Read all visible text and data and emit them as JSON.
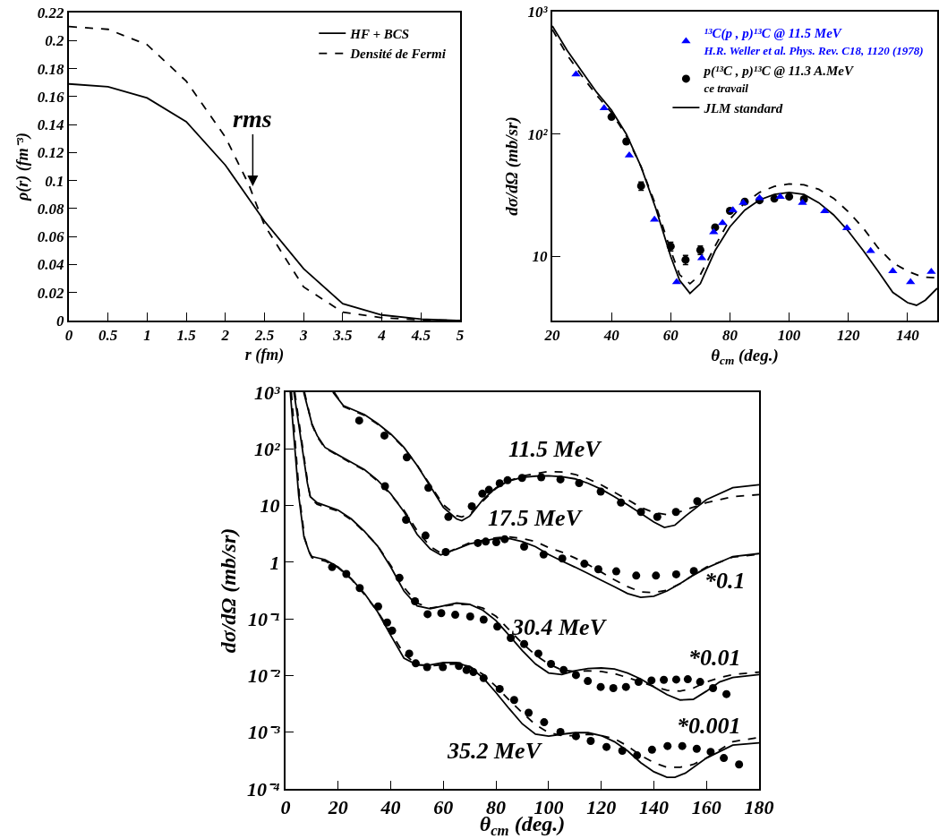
{
  "chart_data": [
    {
      "type": "line",
      "xlabel": "r (fm)",
      "ylabel": "ρ(r) (fm⁻³)",
      "xlim": [
        0,
        5
      ],
      "ylim": [
        0,
        0.22
      ],
      "xticks": [
        0,
        0.5,
        1,
        1.5,
        2,
        2.5,
        3,
        3.5,
        4,
        4.5,
        5
      ],
      "yticks": [
        0,
        0.02,
        0.04,
        0.06,
        0.08,
        0.1,
        0.12,
        0.14,
        0.16,
        0.18,
        0.2,
        0.22
      ],
      "legend": "top right",
      "annotations": [
        {
          "text": "rms",
          "x": 2.35,
          "y": 0.096
        }
      ],
      "series": [
        {
          "name": "HF + BCS",
          "color": "#000000",
          "line_style": "solid",
          "x": [
            0,
            0.5,
            1,
            1.5,
            2,
            2.5,
            3,
            3.5,
            4,
            4.5,
            5
          ],
          "values": [
            0.169,
            0.167,
            0.159,
            0.142,
            0.111,
            0.071,
            0.037,
            0.012,
            0.004,
            0.001,
            0
          ]
        },
        {
          "name": "Densité de Fermi",
          "color": "#000000",
          "line_style": "dashed",
          "x": [
            0,
            0.5,
            1,
            1.5,
            2,
            2.3,
            2.5,
            3,
            3.5,
            4,
            4.5,
            5
          ],
          "values": [
            0.21,
            0.208,
            0.197,
            0.171,
            0.131,
            0.097,
            0.068,
            0.024,
            0.006,
            0.002,
            0.0005,
            0
          ]
        }
      ]
    },
    {
      "type": "line",
      "xlabel": "θ$_{cm}$ (deg.)",
      "ylabel": "dσ/dΩ (mb/sr)",
      "log": "y",
      "xlim": [
        20,
        150
      ],
      "ylim": [
        3,
        1000
      ],
      "xticks": [
        20,
        40,
        60,
        80,
        100,
        120,
        140
      ],
      "yticks": [
        10,
        {
          "value": 100,
          "label": "10²"
        },
        {
          "value": 1000,
          "label": "10³"
        }
      ],
      "legend": "top right",
      "series": [
        {
          "type": "scatter",
          "name": "¹³C(p , p)¹³C @ 11.5 MeV\nH.R. Weller et al. Phys. Rev. C18, 1120 (1978)",
          "color": "#0000ff",
          "marker": "triangle",
          "x": [
            28,
            37.5,
            46,
            54.5,
            62,
            70.5,
            74.5,
            77.5,
            81,
            84.5,
            90,
            97,
            104.5,
            112,
            119.5,
            127.5,
            135,
            141,
            148
          ],
          "values": [
            308,
            163,
            67,
            20,
            6.2,
            9.7,
            15.8,
            18.8,
            23.9,
            27.5,
            30,
            30.8,
            27.5,
            23.5,
            17.1,
            11.1,
            7.6,
            6.2,
            7.5
          ]
        },
        {
          "type": "scatter",
          "name": "p(¹³C , p)¹³C @ 11.3 A.MeV\nce travail",
          "color": "#000000",
          "marker": "circle",
          "x": [
            40,
            45,
            50,
            60,
            65,
            70,
            75,
            80,
            85,
            90,
            95,
            100,
            105
          ],
          "values": [
            138,
            87,
            37.7,
            12.1,
            9.4,
            11.3,
            17.3,
            23.6,
            28.1,
            28.8,
            29.7,
            30.8,
            29.4
          ],
          "errors": [
            null,
            null,
            3,
            1,
            0.8,
            0.9,
            null,
            null,
            null,
            null,
            null,
            null,
            null
          ]
        },
        {
          "type": "line",
          "name": "JLM standard",
          "color": "#000000",
          "line_style": "solid",
          "x": [
            20,
            25,
            30,
            35,
            40,
            45,
            50,
            55,
            60,
            63,
            66.5,
            70,
            75,
            80,
            85,
            90,
            95,
            100,
            105,
            110,
            115,
            120,
            125,
            130,
            135,
            140,
            143,
            146,
            150
          ],
          "values": [
            764,
            482,
            325,
            219,
            157,
            100,
            54,
            24.5,
            10,
            6.4,
            5.0,
            6.0,
            11.2,
            17.5,
            23.9,
            29,
            32.1,
            33.4,
            32.1,
            27.5,
            21.9,
            16.1,
            11.2,
            7.6,
            5.1,
            4.2,
            4.0,
            4.4,
            5.5
          ]
        },
        {
          "type": "line",
          "color": "#000000",
          "line_style": "dashed",
          "x": [
            20,
            25,
            30,
            35,
            40,
            45,
            50,
            55,
            60,
            63,
            66.5,
            70,
            75,
            80,
            85,
            90,
            95,
            100,
            105,
            110,
            115,
            120,
            125,
            130,
            135,
            140,
            145,
            150
          ],
          "values": [
            714,
            443,
            299,
            207,
            150,
            97,
            54,
            26,
            11.2,
            7.1,
            6.0,
            7.1,
            12.2,
            20.2,
            27.5,
            33.4,
            37.4,
            39.2,
            38.5,
            35.4,
            29.9,
            23.2,
            17.1,
            11.8,
            8.9,
            7.6,
            6.8,
            6.7
          ]
        }
      ]
    },
    {
      "type": "line",
      "xlabel": "θ$_{cm}$ (deg.)",
      "ylabel": "dσ/dΩ (mb/sr)",
      "log": "y",
      "xlim": [
        0,
        180
      ],
      "ylim": [
        0.0001,
        1000
      ],
      "xticks": [
        0,
        20,
        40,
        60,
        80,
        100,
        120,
        140,
        160,
        180
      ],
      "yticks": [
        {
          "value": 0.0001,
          "label": "10⁻⁴"
        },
        {
          "value": 0.001,
          "label": "10⁻³"
        },
        {
          "value": 0.01,
          "label": "10⁻²"
        },
        {
          "value": 0.1,
          "label": "10⁻¹"
        },
        1,
        10,
        {
          "value": 100,
          "label": "10²"
        },
        {
          "value": 1000,
          "label": "10³"
        }
      ],
      "annotations": [
        "11.5 MeV",
        "17.5 MeV",
        "30.4 MeV",
        "35.2 MeV",
        "*0.1",
        "*0.01",
        "*0.001"
      ],
      "series": [
        {
          "type": "scatter",
          "color": "#000000",
          "marker": "circle",
          "x": [
            28,
            37.6,
            46.1,
            54.3,
            61.9,
            70.8,
            74.8,
            77.3,
            81.4,
            84.4,
            89.9,
            97.2,
            104.5,
            111.6,
            119.8,
            127.5,
            135.1,
            141.3,
            148.4,
            156.5
          ],
          "values": [
            316,
            172,
            71,
            20.6,
            6.3,
            9.7,
            16.2,
            18.9,
            24.7,
            27.9,
            30.7,
            31.5,
            28.9,
            24.9,
            17.6,
            11.3,
            7.7,
            6.3,
            7.7,
            11.9
          ]
        },
        {
          "type": "line",
          "color": "#000000",
          "line_style": "solid",
          "x": [
            18,
            22,
            30,
            35,
            40,
            45,
            50,
            55,
            60,
            65,
            67,
            70,
            75,
            80,
            85,
            90,
            95,
            100,
            105,
            110,
            115,
            120,
            125,
            130,
            135,
            140,
            144,
            148,
            152,
            160,
            170,
            180
          ],
          "values": [
            1000,
            580,
            403,
            280,
            183,
            106,
            51,
            21.9,
            9.3,
            5.8,
            5.4,
            6.5,
            12.7,
            20.6,
            27.2,
            31.5,
            33,
            33.4,
            32.2,
            29.6,
            24.7,
            19.4,
            14.3,
            10.3,
            7.3,
            5.1,
            4.1,
            4.5,
            6.5,
            12.7,
            20.6,
            23.2
          ]
        },
        {
          "type": "line",
          "color": "#000000",
          "line_style": "dashed",
          "x": [
            18.5,
            22,
            30,
            35,
            40,
            45,
            50,
            55,
            60,
            65,
            67,
            70,
            75,
            80,
            85,
            90,
            95,
            100,
            105,
            110,
            115,
            120,
            125,
            130,
            135,
            140,
            145,
            150,
            160,
            170,
            180
          ],
          "values": [
            1000,
            560,
            390,
            272,
            178,
            104,
            52,
            23,
            10.3,
            6.6,
            6.3,
            7.0,
            12.0,
            20,
            27.5,
            33,
            36.5,
            40,
            39,
            35.5,
            29.6,
            23.2,
            17.1,
            12.7,
            9.3,
            7.5,
            6.9,
            7.8,
            11.2,
            14.3,
            15.6
          ]
        },
        {
          "type": "scatter",
          "color": "#000000",
          "marker": "circle",
          "x": [
            37.8,
            45.8,
            53.2,
            60.9,
            73.1,
            76.1,
            80.1,
            83.3,
            90.7,
            98.1,
            105.2,
            113.6,
            118.9,
            125.7,
            133.3,
            140.8,
            148.5,
            155.2
          ],
          "values": [
            21.9,
            5.6,
            2.95,
            1.51,
            2.18,
            2.31,
            2.26,
            2.55,
            1.88,
            1.37,
            1.16,
            0.94,
            0.75,
            0.69,
            0.58,
            0.58,
            0.61,
            0.7
          ]
        },
        {
          "type": "line",
          "color": "#000000",
          "line_style": "solid",
          "x": [
            6.9,
            10,
            12,
            15,
            20,
            25,
            30,
            35,
            40,
            45,
            50,
            55,
            59,
            62,
            70,
            80,
            85,
            90,
            95,
            100,
            105,
            110,
            115,
            120,
            125,
            130,
            135,
            140,
            145,
            150,
            155,
            160,
            170,
            180
          ],
          "values": [
            1000,
            280,
            172,
            106,
            78,
            58,
            43,
            27.9,
            16.1,
            7.8,
            3.1,
            1.71,
            1.34,
            1.51,
            2.1,
            2.61,
            2.61,
            2.31,
            1.88,
            1.37,
            1.05,
            0.82,
            0.63,
            0.48,
            0.37,
            0.28,
            0.24,
            0.25,
            0.31,
            0.42,
            0.59,
            0.79,
            1.26,
            1.42
          ]
        },
        {
          "type": "line",
          "color": "#000000",
          "line_style": "dashed",
          "x": [
            7.2,
            10,
            12,
            15,
            20,
            25,
            30,
            35,
            40,
            45,
            50,
            55,
            59,
            62,
            70,
            80,
            85,
            90,
            95,
            100,
            105,
            110,
            115,
            120,
            125,
            130,
            135,
            140,
            145,
            150,
            155,
            160,
            170,
            180
          ],
          "values": [
            1000,
            270,
            165,
            103,
            76,
            56,
            42,
            27,
            15.5,
            8.3,
            3.6,
            1.9,
            1.45,
            1.52,
            2.2,
            2.7,
            2.8,
            2.61,
            2.31,
            1.81,
            1.51,
            1.19,
            0.91,
            0.67,
            0.49,
            0.37,
            0.3,
            0.29,
            0.32,
            0.42,
            0.59,
            0.82,
            1.23,
            1.37
          ]
        },
        {
          "type": "scatter",
          "color": "#000000",
          "marker": "circle",
          "x": [
            43.3,
            49.2,
            54,
            59.2,
            64.5,
            70.2,
            75.3,
            80.5,
            85.6,
            90.7,
            96.1,
            100.9,
            105.7,
            110.4,
            114.9,
            119.8,
            124.6,
            129.4,
            134.2,
            139.1,
            143.8,
            148.5,
            152.9,
            157.6,
            162.5,
            167.6
          ],
          "values": [
            0.53,
            0.204,
            0.121,
            0.126,
            0.118,
            0.11,
            0.097,
            0.073,
            0.046,
            0.036,
            0.0244,
            0.016,
            0.0125,
            0.0102,
            0.008,
            0.0063,
            0.006,
            0.0063,
            0.0077,
            0.0082,
            0.0084,
            0.0085,
            0.0086,
            0.0077,
            0.006,
            0.0047
          ]
        },
        {
          "type": "line",
          "color": "#000000",
          "line_style": "solid",
          "x": [
            3.2,
            8.3,
            9.4,
            12,
            20,
            25,
            30,
            35,
            40,
            45,
            50,
            55,
            60,
            65,
            70,
            75,
            80,
            85,
            90,
            95,
            100,
            105,
            110,
            115,
            120,
            125,
            130,
            135,
            140,
            145,
            150,
            155,
            160,
            165,
            170,
            180
          ],
          "values": [
            1000,
            25,
            14.3,
            11.2,
            8.3,
            5.8,
            3.5,
            1.93,
            0.82,
            0.31,
            0.17,
            0.151,
            0.17,
            0.19,
            0.18,
            0.142,
            0.093,
            0.051,
            0.0275,
            0.016,
            0.0111,
            0.0104,
            0.0121,
            0.0133,
            0.0136,
            0.013,
            0.0111,
            0.0087,
            0.0063,
            0.0046,
            0.0037,
            0.0038,
            0.0053,
            0.0077,
            0.0092,
            0.0104
          ]
        },
        {
          "type": "line",
          "color": "#000000",
          "line_style": "dashed",
          "x": [
            3.5,
            8.5,
            9.5,
            12,
            20,
            25,
            30,
            35,
            40,
            45,
            50,
            55,
            60,
            65,
            70,
            75,
            80,
            85,
            90,
            95,
            100,
            105,
            110,
            115,
            120,
            125,
            130,
            135,
            140,
            145,
            150,
            155,
            160,
            165,
            170,
            180
          ],
          "values": [
            1000,
            24,
            13.5,
            10.5,
            8.0,
            5.6,
            3.4,
            1.95,
            0.88,
            0.36,
            0.19,
            0.155,
            0.168,
            0.18,
            0.18,
            0.155,
            0.111,
            0.064,
            0.037,
            0.023,
            0.016,
            0.0125,
            0.0118,
            0.0121,
            0.0118,
            0.0108,
            0.0092,
            0.0077,
            0.0064,
            0.0055,
            0.0053,
            0.006,
            0.0077,
            0.0092,
            0.0104,
            0.0115
          ]
        },
        {
          "type": "scatter",
          "color": "#000000",
          "marker": "circle",
          "x": [
            17.7,
            23.1,
            28.2,
            35.2,
            38.6,
            40.5,
            47,
            49.5,
            53.8,
            59.8,
            65.9,
            68.8,
            71.4,
            75.3,
            81.4,
            86.9,
            92.4,
            98.3,
            104.5,
            110.4,
            116,
            122,
            128,
            133.6,
            139.3,
            145.2,
            150.8,
            156.3,
            161.6,
            166.6,
            172.4
          ],
          "values": [
            0.82,
            0.62,
            0.35,
            0.166,
            0.086,
            0.062,
            0.0244,
            0.0164,
            0.0141,
            0.0141,
            0.0147,
            0.0125,
            0.0115,
            0.009,
            0.0058,
            0.0037,
            0.0022,
            0.0015,
            0.00101,
            0.00085,
            0.0007,
            0.00055,
            0.00047,
            0.00039,
            0.00049,
            0.00057,
            0.00057,
            0.00051,
            0.00045,
            0.00035,
            0.00027
          ]
        },
        {
          "type": "line",
          "color": "#000000",
          "line_style": "solid",
          "x": [
            1.8,
            5,
            7,
            9,
            10,
            15,
            20,
            25,
            30,
            35,
            40,
            45,
            50,
            55,
            60,
            65,
            70,
            75,
            80,
            85,
            90,
            95,
            100,
            105,
            110,
            115,
            120,
            125,
            130,
            135,
            140,
            145,
            148,
            152,
            160,
            170,
            180
          ],
          "values": [
            1000,
            15,
            2.8,
            1.5,
            1.26,
            1.11,
            0.82,
            0.51,
            0.28,
            0.133,
            0.051,
            0.0203,
            0.0154,
            0.0154,
            0.0169,
            0.0169,
            0.0141,
            0.0092,
            0.005,
            0.0026,
            0.0014,
            0.00092,
            0.00085,
            0.00092,
            0.00098,
            0.00098,
            0.00087,
            0.00068,
            0.00047,
            0.00029,
            0.0002,
            0.00016,
            0.00016,
            0.00019,
            0.00035,
            0.00059,
            0.00065
          ]
        },
        {
          "type": "line",
          "color": "#000000",
          "line_style": "dashed",
          "x": [
            2.2,
            5.3,
            7.3,
            9.3,
            10,
            15,
            20,
            25,
            30,
            35,
            40,
            45,
            50,
            55,
            60,
            65,
            70,
            75,
            80,
            85,
            90,
            95,
            100,
            105,
            110,
            115,
            120,
            125,
            130,
            135,
            140,
            145,
            150,
            155,
            160,
            170,
            180
          ],
          "values": [
            1000,
            14,
            2.6,
            1.4,
            1.2,
            1.05,
            0.8,
            0.5,
            0.27,
            0.135,
            0.058,
            0.024,
            0.0155,
            0.0148,
            0.0155,
            0.016,
            0.0145,
            0.0105,
            0.0064,
            0.0037,
            0.0022,
            0.00136,
            0.00098,
            0.00087,
            0.00087,
            0.00092,
            0.00087,
            0.00077,
            0.00057,
            0.00039,
            0.00029,
            0.00024,
            0.00024,
            0.00027,
            0.00035,
            0.00068,
            0.00081
          ]
        }
      ]
    }
  ]
}
